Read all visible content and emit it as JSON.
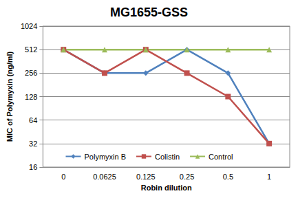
{
  "chart_data": {
    "type": "line",
    "title": "MG1655-GSS",
    "x_label": "Robin dilution",
    "y_label": "MIC of Polymyxin (ng/ml)",
    "categories": [
      "0",
      "0.0625",
      "0.125",
      "0.25",
      "0.5",
      "1"
    ],
    "series": [
      {
        "name": "Polymyxin B",
        "color": "#4f81bd",
        "marker": "diamond",
        "values": [
          512,
          256,
          256,
          512,
          256,
          32
        ]
      },
      {
        "name": "Colistin",
        "color": "#c0504d",
        "marker": "square",
        "values": [
          512,
          256,
          512,
          256,
          128,
          32
        ]
      },
      {
        "name": "Control",
        "color": "#9bbb59",
        "marker": "triangle",
        "values": [
          512,
          512,
          512,
          512,
          512,
          512
        ]
      }
    ],
    "ylim": [
      16,
      1024
    ],
    "yticks": [
      16,
      32,
      64,
      128,
      256,
      512,
      1024
    ],
    "log": "y",
    "grid": true,
    "legend": "bottom"
  }
}
